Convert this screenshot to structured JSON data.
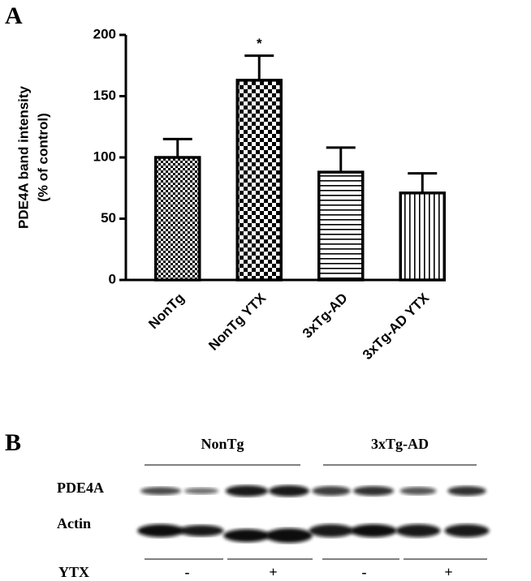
{
  "chart_data": {
    "type": "bar",
    "panel": "A",
    "ylabel": [
      "PDE4A band intensity",
      "(% of control)"
    ],
    "categories": [
      "NonTg",
      "NonTg YTX",
      "3xTg-AD",
      "3xTg-AD YTX"
    ],
    "values": [
      100,
      163,
      88,
      71
    ],
    "errors": [
      15,
      20,
      20,
      16
    ],
    "patterns": [
      "fine-checker",
      "coarse-checker",
      "horizontal",
      "vertical"
    ],
    "annotations": [
      {
        "category": 1,
        "text": "*"
      }
    ],
    "ylim": [
      0,
      200
    ],
    "yticks": [
      0,
      50,
      100,
      150,
      200
    ],
    "grid": false
  },
  "blot": {
    "panel": "B",
    "groups": [
      "NonTg",
      "3xTg-AD"
    ],
    "rows": [
      "PDE4A",
      "Actin"
    ],
    "treatment": {
      "label": "YTX",
      "lanes": [
        "-",
        "+",
        "-",
        "+"
      ]
    }
  }
}
